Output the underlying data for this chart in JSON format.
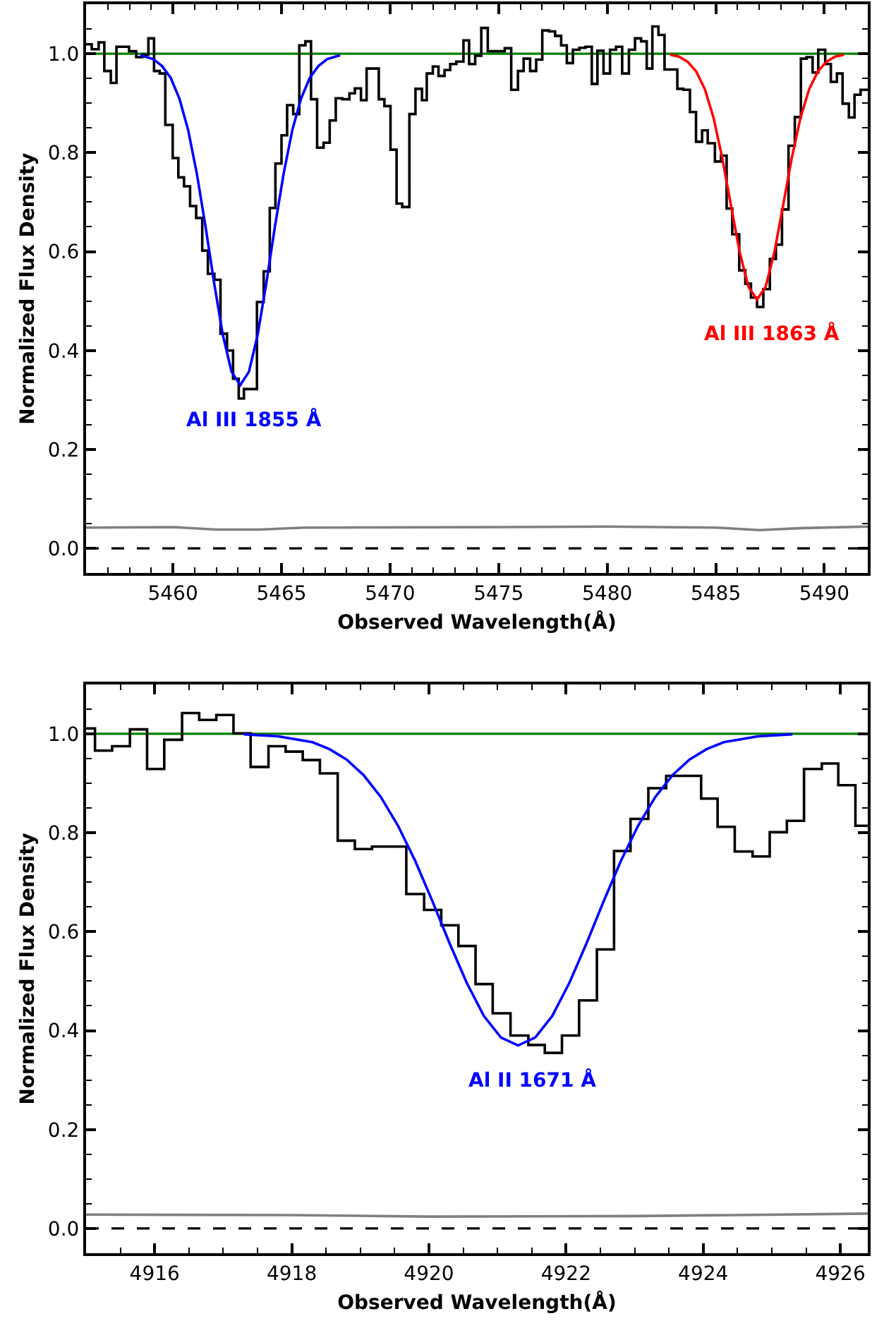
{
  "chart_data": [
    {
      "type": "step",
      "xlabel": "Observed Wavelength(Å)",
      "ylabel": "Normalized Flux Density",
      "xlim": [
        5456,
        5492
      ],
      "ylim": [
        -0.05,
        1.1
      ],
      "grid": false,
      "xticks": [
        {
          "value": 5457,
          "label": null
        },
        {
          "value": 5458,
          "label": null
        },
        {
          "value": 5459,
          "label": null
        },
        5460,
        {
          "value": 5461,
          "label": null
        },
        {
          "value": 5462,
          "label": null
        },
        {
          "value": 5463,
          "label": null
        },
        {
          "value": 5464,
          "label": null
        },
        5465,
        {
          "value": 5466,
          "label": null
        },
        {
          "value": 5467,
          "label": null
        },
        {
          "value": 5468,
          "label": null
        },
        {
          "value": 5469,
          "label": null
        },
        5470,
        {
          "value": 5471,
          "label": null
        },
        {
          "value": 5472,
          "label": null
        },
        {
          "value": 5473,
          "label": null
        },
        {
          "value": 5474,
          "label": null
        },
        5475,
        {
          "value": 5476,
          "label": null
        },
        {
          "value": 5477,
          "label": null
        },
        {
          "value": 5478,
          "label": null
        },
        {
          "value": 5479,
          "label": null
        },
        5480,
        {
          "value": 5481,
          "label": null
        },
        {
          "value": 5482,
          "label": null
        },
        {
          "value": 5483,
          "label": null
        },
        {
          "value": 5484,
          "label": null
        },
        5485,
        {
          "value": 5486,
          "label": null
        },
        {
          "value": 5487,
          "label": null
        },
        {
          "value": 5488,
          "label": null
        },
        {
          "value": 5489,
          "label": null
        },
        5490,
        {
          "value": 5491,
          "label": null
        }
      ],
      "yticks": [
        {
          "value": 0,
          "label": "0.0"
        },
        {
          "value": 0.05,
          "label": null
        },
        {
          "value": 0.1,
          "label": null
        },
        {
          "value": 0.15,
          "label": null
        },
        0.2,
        {
          "value": 0.25,
          "label": null
        },
        {
          "value": 0.3,
          "label": null
        },
        {
          "value": 0.35,
          "label": null
        },
        0.4,
        {
          "value": 0.45,
          "label": null
        },
        {
          "value": 0.5,
          "label": null
        },
        {
          "value": 0.55,
          "label": null
        },
        0.6,
        {
          "value": 0.65,
          "label": null
        },
        {
          "value": 0.7,
          "label": null
        },
        {
          "value": 0.75,
          "label": null
        },
        0.8,
        {
          "value": 0.85,
          "label": null
        },
        {
          "value": 0.9,
          "label": null
        },
        {
          "value": 0.95,
          "label": null
        },
        {
          "value": 1,
          "label": "1.0"
        },
        {
          "value": 1.05,
          "label": null
        }
      ],
      "series": [
        {
          "color": "#000000",
          "x": [
            5456.0,
            5456.26,
            5456.58,
            5456.84,
            5457.14,
            5457.4,
            5457.98,
            5458.31,
            5458.59,
            5458.87,
            5459.13,
            5459.39,
            5459.65,
            5459.99,
            5460.25,
            5460.51,
            5460.79,
            5461.07,
            5461.35,
            5461.61,
            5461.91,
            5462.19,
            5462.49,
            5462.77,
            5463.03,
            5463.27,
            5463.62,
            5463.87,
            5464.18,
            5464.46,
            5464.72,
            5465.0,
            5465.26,
            5465.54,
            5465.82,
            5466.1,
            5466.36,
            5466.64,
            5466.94,
            5467.22,
            5467.5,
            5467.8,
            5468.13,
            5468.38,
            5468.66,
            5468.92,
            5469.48,
            5469.74,
            5470.02,
            5470.3,
            5470.56,
            5470.89,
            5471.17,
            5471.47,
            5471.69,
            5471.97,
            5472.23,
            5472.51,
            5472.77,
            5473.05,
            5473.38,
            5473.64,
            5473.92,
            5474.2,
            5474.5,
            5475.28,
            5475.58,
            5475.89,
            5476.15,
            5476.45,
            5476.73,
            5477.01,
            5477.32,
            5477.6,
            5477.88,
            5478.14,
            5478.42,
            5478.72,
            5479.0,
            5479.29,
            5479.55,
            5479.83,
            5480.13,
            5480.41,
            5480.69,
            5481.0,
            5481.28,
            5481.56,
            5481.82,
            5482.08,
            5482.36,
            5482.64,
            5483.23,
            5483.51,
            5483.81,
            5484.09,
            5484.37,
            5484.63,
            5484.96,
            5485.24,
            5485.5,
            5485.76,
            5486.08,
            5486.36,
            5486.62,
            5486.9,
            5487.19,
            5487.49,
            5487.77,
            5488.05,
            5488.35,
            5488.64,
            5488.92,
            5489.18,
            5489.46,
            5489.72,
            5490.04,
            5490.3,
            5490.58,
            5490.84,
            5491.13,
            5491.39,
            5491.67,
            5492
          ],
          "values": [
            1.019,
            1.009,
            1.023,
            0.965,
            0.941,
            1.014,
            1.005,
            0.993,
            0.998,
            1.031,
            0.965,
            0.96,
            0.856,
            0.789,
            0.75,
            0.732,
            0.692,
            0.668,
            0.602,
            0.555,
            0.543,
            0.434,
            0.4,
            0.343,
            0.303,
            0.322,
            0.322,
            0.498,
            0.56,
            0.688,
            0.778,
            0.835,
            0.896,
            0.878,
            1.017,
            1.025,
            0.908,
            0.81,
            0.82,
            0.865,
            0.91,
            0.908,
            0.92,
            0.93,
            0.906,
            0.97,
            0.908,
            0.894,
            0.806,
            0.697,
            0.69,
            0.878,
            0.929,
            0.906,
            0.96,
            0.974,
            0.955,
            0.967,
            0.979,
            0.984,
            1.027,
            0.979,
            0.996,
            1.052,
            1.005,
            1.011,
            0.927,
            0.965,
            0.99,
            0.965,
            0.988,
            1.047,
            1.045,
            1.036,
            1.017,
            0.981,
            1.008,
            1.012,
            1.014,
            0.939,
            1.006,
            0.96,
            1.008,
            1.014,
            0.96,
            1.008,
            1.031,
            1.025,
            0.97,
            1.055,
            1.038,
            0.968,
            0.929,
            0.927,
            0.882,
            0.822,
            0.845,
            0.819,
            0.782,
            0.794,
            0.687,
            0.635,
            0.562,
            0.535,
            0.507,
            0.488,
            0.524,
            0.585,
            0.614,
            0.685,
            0.814,
            0.872,
            0.99,
            0.993,
            0.962,
            1.008,
            0.979,
            0.943,
            0.96,
            0.899,
            0.871,
            0.917,
            0.927,
            0.927
          ]
        },
        {
          "type": "line",
          "color": "#0000ff",
          "x": [
            5458.5,
            5459.1,
            5459.5,
            5459.9,
            5460.3,
            5460.7,
            5461.1,
            5461.5,
            5461.9,
            5462.3,
            5462.7,
            5463.1,
            5463.5,
            5463.9,
            5464.3,
            5464.7,
            5465.1,
            5465.5,
            5465.9,
            5466.3,
            5466.7,
            5467.1,
            5467.7
          ],
          "values": [
            0.997,
            0.989,
            0.975,
            0.951,
            0.909,
            0.846,
            0.758,
            0.651,
            0.536,
            0.431,
            0.357,
            0.33,
            0.357,
            0.431,
            0.536,
            0.651,
            0.758,
            0.846,
            0.909,
            0.951,
            0.975,
            0.989,
            0.997
          ]
        },
        {
          "type": "line",
          "color": "#ff0000",
          "x": [
            5482.9,
            5483.3,
            5483.7,
            5484.1,
            5484.5,
            5484.9,
            5485.3,
            5485.7,
            5486.1,
            5486.5,
            5486.9,
            5487.3,
            5487.7,
            5488.1,
            5488.5,
            5488.9,
            5489.3,
            5489.7,
            5490.1,
            5490.5,
            5490.9
          ],
          "values": [
            0.998,
            0.994,
            0.984,
            0.964,
            0.928,
            0.87,
            0.789,
            0.693,
            0.599,
            0.529,
            0.503,
            0.529,
            0.599,
            0.693,
            0.789,
            0.87,
            0.928,
            0.964,
            0.984,
            0.994,
            0.998
          ]
        },
        {
          "type": "line",
          "color": "#808080",
          "x": [
            5456,
            5460,
            5462,
            5464,
            5466,
            5475,
            5480,
            5485,
            5487,
            5489,
            5492
          ],
          "values": [
            0.042,
            0.043,
            0.038,
            0.038,
            0.042,
            0.043,
            0.044,
            0.042,
            0.037,
            0.041,
            0.044
          ]
        }
      ],
      "ref_lines": [
        {
          "axis": "y",
          "value": 1,
          "color": "#008000",
          "line_style": "solid"
        },
        {
          "axis": "y",
          "value": 0,
          "color": "#000000",
          "line_style": "dashed"
        }
      ],
      "annotations": [
        "Al III 1855 Å",
        "Al III 1863 Å"
      ]
    },
    {
      "type": "step",
      "xlabel": "Observed Wavelength(Å)",
      "ylabel": "Normalized Flux Density",
      "xlim": [
        4915,
        4926.4
      ],
      "ylim": [
        -0.05,
        1.1
      ],
      "grid": false,
      "xticks": [
        {
          "value": 4915.5,
          "label": null
        },
        4916,
        {
          "value": 4916.5,
          "label": null
        },
        {
          "value": 4917,
          "label": null
        },
        {
          "value": 4917.5,
          "label": null
        },
        4918,
        {
          "value": 4918.5,
          "label": null
        },
        {
          "value": 4919,
          "label": null
        },
        {
          "value": 4919.5,
          "label": null
        },
        4920,
        {
          "value": 4920.5,
          "label": null
        },
        {
          "value": 4921,
          "label": null
        },
        {
          "value": 4921.5,
          "label": null
        },
        4922,
        {
          "value": 4922.5,
          "label": null
        },
        {
          "value": 4923,
          "label": null
        },
        {
          "value": 4923.5,
          "label": null
        },
        4924,
        {
          "value": 4924.5,
          "label": null
        },
        {
          "value": 4925,
          "label": null
        },
        {
          "value": 4925.5,
          "label": null
        },
        4926
      ],
      "yticks": [
        {
          "value": 0,
          "label": "0.0"
        },
        {
          "value": 0.05,
          "label": null
        },
        {
          "value": 0.1,
          "label": null
        },
        {
          "value": 0.15,
          "label": null
        },
        0.2,
        {
          "value": 0.25,
          "label": null
        },
        {
          "value": 0.3,
          "label": null
        },
        {
          "value": 0.35,
          "label": null
        },
        0.4,
        {
          "value": 0.45,
          "label": null
        },
        {
          "value": 0.5,
          "label": null
        },
        {
          "value": 0.55,
          "label": null
        },
        0.6,
        {
          "value": 0.65,
          "label": null
        },
        {
          "value": 0.7,
          "label": null
        },
        {
          "value": 0.75,
          "label": null
        },
        0.8,
        {
          "value": 0.85,
          "label": null
        },
        {
          "value": 0.9,
          "label": null
        },
        {
          "value": 0.95,
          "label": null
        },
        {
          "value": 1,
          "label": "1.0"
        },
        {
          "value": 1.05,
          "label": null
        }
      ],
      "series": [
        {
          "color": "#000000",
          "x": [
            4915.0,
            4915.13,
            4915.38,
            4915.64,
            4915.89,
            4916.14,
            4916.4,
            4916.65,
            4916.9,
            4917.15,
            4917.4,
            4917.66,
            4917.91,
            4918.16,
            4918.41,
            4918.67,
            4918.92,
            4919.17,
            4919.67,
            4919.93,
            4920.18,
            4920.43,
            4920.68,
            4920.93,
            4921.19,
            4921.45,
            4921.69,
            4921.94,
            4922.19,
            4922.45,
            4922.7,
            4922.94,
            4923.2,
            4923.46,
            4923.97,
            4924.21,
            4924.46,
            4924.72,
            4924.97,
            4925.22,
            4925.47,
            4925.73,
            4925.97,
            4926.22,
            4926.4
          ],
          "values": [
            1.011,
            0.966,
            0.975,
            1.009,
            0.929,
            0.988,
            1.042,
            1.028,
            1.038,
            1.001,
            0.933,
            0.975,
            0.964,
            0.947,
            0.92,
            0.784,
            0.767,
            0.772,
            0.676,
            0.644,
            0.613,
            0.571,
            0.494,
            0.435,
            0.39,
            0.371,
            0.355,
            0.39,
            0.461,
            0.564,
            0.763,
            0.828,
            0.89,
            0.915,
            0.869,
            0.812,
            0.762,
            0.752,
            0.801,
            0.824,
            0.929,
            0.94,
            0.896,
            0.814,
            0.814
          ]
        },
        {
          "type": "line",
          "color": "#0000ff",
          "x": [
            4917.3,
            4917.8,
            4918.3,
            4918.55,
            4918.8,
            4919.05,
            4919.3,
            4919.55,
            4919.8,
            4920.05,
            4920.3,
            4920.55,
            4920.8,
            4921.05,
            4921.3,
            4921.55,
            4921.8,
            4922.05,
            4922.3,
            4922.55,
            4922.8,
            4923.05,
            4923.3,
            4923.55,
            4923.8,
            4924.05,
            4924.3,
            4924.8,
            4925.3
          ],
          "values": [
            0.999,
            0.995,
            0.983,
            0.969,
            0.948,
            0.916,
            0.872,
            0.814,
            0.743,
            0.662,
            0.577,
            0.497,
            0.43,
            0.386,
            0.37,
            0.386,
            0.43,
            0.497,
            0.577,
            0.662,
            0.743,
            0.814,
            0.872,
            0.916,
            0.948,
            0.969,
            0.983,
            0.995,
            0.999
          ]
        },
        {
          "type": "line",
          "color": "#808080",
          "x": [
            4915,
            4918,
            4920,
            4923,
            4926.4
          ],
          "values": [
            0.028,
            0.027,
            0.024,
            0.025,
            0.03
          ]
        }
      ],
      "ref_lines": [
        {
          "axis": "y",
          "value": 1,
          "color": "#008000",
          "line_style": "solid"
        },
        {
          "axis": "y",
          "value": 0,
          "color": "#000000",
          "line_style": "dashed"
        }
      ],
      "annotations": [
        "Al II 1671 Å"
      ]
    }
  ]
}
